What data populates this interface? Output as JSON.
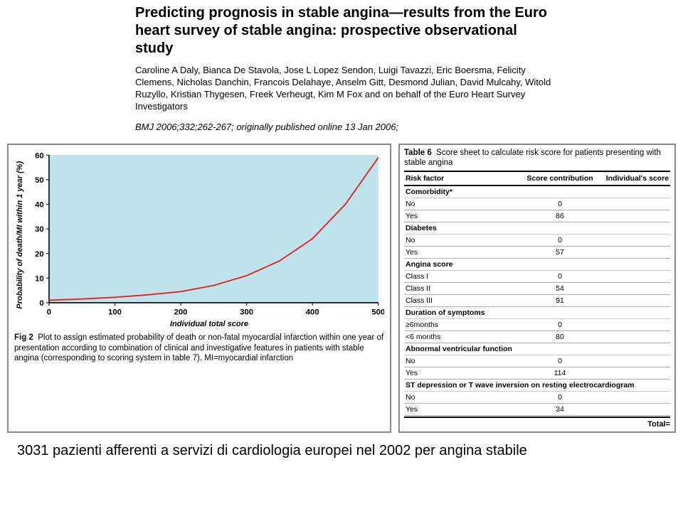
{
  "header": {
    "title": "Predicting prognosis in stable angina—results from the Euro heart survey of stable angina: prospective observational study",
    "authors": "Caroline A Daly, Bianca De Stavola, Jose L Lopez Sendon, Luigi Tavazzi, Eric Boersma, Felicity Clemens, Nicholas Danchin, Francois Delahaye, Anselm Gitt, Desmond Julian, David Mulcahy, Witold Ruzyllo, Kristian Thygesen, Freek Verheugt, Kim M Fox and on behalf of the Euro Heart Survey Investigators",
    "citation": "BMJ 2006;332;262-267; originally published online 13 Jan 2006;"
  },
  "chart": {
    "type": "line",
    "ylabel": "Probability of death/MI within 1 year (%)",
    "xlabel": "Individual total score",
    "xlim": [
      0,
      500
    ],
    "ylim": [
      0,
      60
    ],
    "xtick_step": 100,
    "ytick_step": 10,
    "xticks": [
      0,
      100,
      200,
      300,
      400,
      500
    ],
    "yticks": [
      0,
      10,
      20,
      30,
      40,
      50,
      60
    ],
    "line_color": "#e02020",
    "line_width": 1.8,
    "plot_bg": "#bfe3ea",
    "axis_color": "#000000",
    "tick_font": 11,
    "points_x": [
      0,
      50,
      100,
      150,
      200,
      250,
      300,
      350,
      400,
      450,
      500
    ],
    "points_y": [
      1,
      1.5,
      2.2,
      3.2,
      4.5,
      7,
      11,
      17,
      26,
      40,
      59
    ],
    "caption_prefix": "Fig 2",
    "caption": "Plot to assign estimated probability of death or non-fatal myocardial infarction within one year of presentation according to combination of clinical and investigative features in patients with stable angina (corresponding to scoring system in table 7). MI=myocardial infarction"
  },
  "table": {
    "title_prefix": "Table 6",
    "title": "Score sheet to calculate risk score for patients presenting with stable angina",
    "col1": "Risk factor",
    "col2": "Score contribution",
    "col3": "Individual's score",
    "groups": [
      {
        "label": "Comorbidity*",
        "rows": [
          {
            "label": "No",
            "score": "0"
          },
          {
            "label": "Yes",
            "score": "86"
          }
        ]
      },
      {
        "label": "Diabetes",
        "rows": [
          {
            "label": "No",
            "score": "0"
          },
          {
            "label": "Yes",
            "score": "57"
          }
        ]
      },
      {
        "label": "Angina score",
        "rows": [
          {
            "label": "Class I",
            "score": "0"
          },
          {
            "label": "Class II",
            "score": "54"
          },
          {
            "label": "Class III",
            "score": "91"
          }
        ]
      },
      {
        "label": "Duration of symptoms",
        "rows": [
          {
            "label": "≥6months",
            "score": "0"
          },
          {
            "label": "<6 months",
            "score": "80"
          }
        ]
      },
      {
        "label": "Abnormal ventricular function",
        "rows": [
          {
            "label": "No",
            "score": "0"
          },
          {
            "label": "Yes",
            "score": "114"
          }
        ]
      },
      {
        "label": "ST depression or T wave inversion on resting electrocardiogram",
        "rows": [
          {
            "label": "No",
            "score": "0"
          },
          {
            "label": "Yes",
            "score": "34"
          }
        ]
      }
    ],
    "total_label": "Total="
  },
  "footer": "3031 pazienti afferenti a servizi di cardiologia europei nel 2002 per angina stabile"
}
